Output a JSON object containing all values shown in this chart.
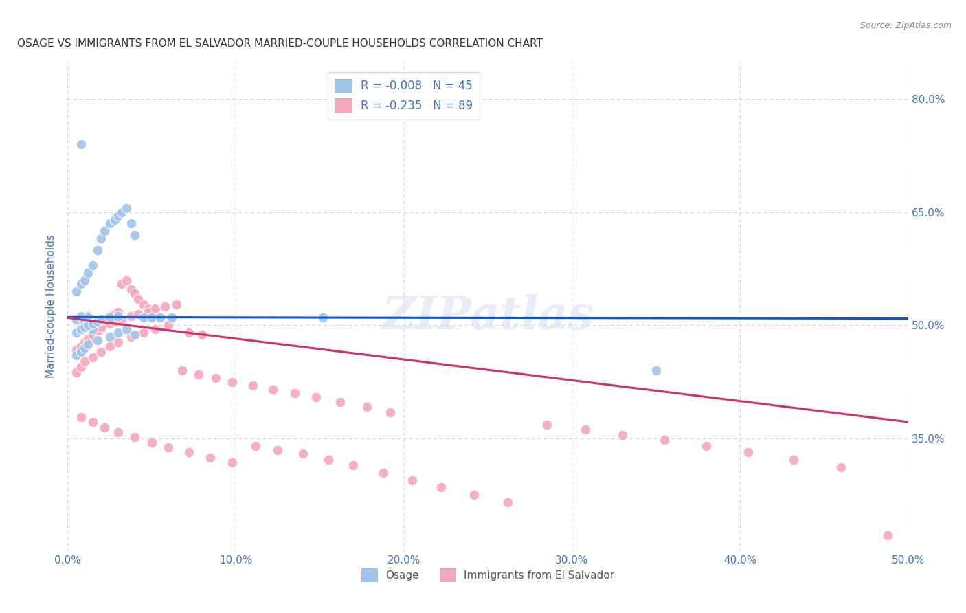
{
  "title": "OSAGE VS IMMIGRANTS FROM EL SALVADOR MARRIED-COUPLE HOUSEHOLDS CORRELATION CHART",
  "source": "Source: ZipAtlas.com",
  "ylabel": "Married-couple Households",
  "xlim": [
    0.0,
    0.5
  ],
  "ylim": [
    0.2,
    0.85
  ],
  "xtick_labels": [
    "0.0%",
    "10.0%",
    "20.0%",
    "30.0%",
    "40.0%",
    "50.0%"
  ],
  "xtick_vals": [
    0.0,
    0.1,
    0.2,
    0.3,
    0.4,
    0.5
  ],
  "ytick_labels": [
    "35.0%",
    "50.0%",
    "65.0%",
    "80.0%"
  ],
  "ytick_vals": [
    0.35,
    0.5,
    0.65,
    0.8
  ],
  "blue_R": "-0.008",
  "blue_N": "45",
  "pink_R": "-0.235",
  "pink_N": "89",
  "blue_color": "#9fc5e8",
  "pink_color": "#f4a7b9",
  "blue_line_color": "#1155cc",
  "pink_line_color": "#cc3366",
  "watermark": "ZIPatlas",
  "blue_points_x": [
    0.005,
    0.008,
    0.01,
    0.012,
    0.015,
    0.005,
    0.008,
    0.01,
    0.012,
    0.015,
    0.018,
    0.02,
    0.022,
    0.025,
    0.028,
    0.03,
    0.032,
    0.035,
    0.038,
    0.04,
    0.005,
    0.008,
    0.01,
    0.012,
    0.015,
    0.018,
    0.02,
    0.025,
    0.03,
    0.005,
    0.008,
    0.01,
    0.012,
    0.018,
    0.025,
    0.03,
    0.035,
    0.04,
    0.045,
    0.05,
    0.055,
    0.062,
    0.152,
    0.35,
    0.008
  ],
  "blue_points_y": [
    0.508,
    0.512,
    0.505,
    0.51,
    0.495,
    0.545,
    0.555,
    0.56,
    0.57,
    0.58,
    0.6,
    0.615,
    0.625,
    0.635,
    0.64,
    0.645,
    0.65,
    0.655,
    0.635,
    0.62,
    0.49,
    0.495,
    0.498,
    0.5,
    0.502,
    0.505,
    0.508,
    0.51,
    0.512,
    0.46,
    0.465,
    0.47,
    0.475,
    0.48,
    0.485,
    0.49,
    0.495,
    0.488,
    0.51,
    0.51,
    0.51,
    0.51,
    0.51,
    0.44,
    0.74
  ],
  "pink_points_x": [
    0.005,
    0.008,
    0.01,
    0.012,
    0.015,
    0.018,
    0.02,
    0.022,
    0.025,
    0.028,
    0.03,
    0.032,
    0.035,
    0.038,
    0.04,
    0.042,
    0.045,
    0.048,
    0.05,
    0.052,
    0.005,
    0.008,
    0.01,
    0.012,
    0.015,
    0.018,
    0.02,
    0.025,
    0.028,
    0.032,
    0.038,
    0.042,
    0.048,
    0.052,
    0.058,
    0.065,
    0.072,
    0.08,
    0.005,
    0.008,
    0.01,
    0.015,
    0.02,
    0.025,
    0.03,
    0.038,
    0.045,
    0.052,
    0.06,
    0.068,
    0.078,
    0.088,
    0.098,
    0.11,
    0.122,
    0.135,
    0.148,
    0.162,
    0.178,
    0.192,
    0.008,
    0.015,
    0.022,
    0.03,
    0.04,
    0.05,
    0.06,
    0.072,
    0.085,
    0.098,
    0.112,
    0.125,
    0.14,
    0.155,
    0.17,
    0.188,
    0.205,
    0.222,
    0.242,
    0.262,
    0.285,
    0.308,
    0.33,
    0.355,
    0.38,
    0.405,
    0.432,
    0.46,
    0.488
  ],
  "pink_points_y": [
    0.508,
    0.505,
    0.51,
    0.512,
    0.498,
    0.502,
    0.495,
    0.508,
    0.512,
    0.515,
    0.518,
    0.555,
    0.56,
    0.548,
    0.542,
    0.535,
    0.528,
    0.522,
    0.518,
    0.512,
    0.468,
    0.472,
    0.478,
    0.482,
    0.488,
    0.492,
    0.498,
    0.502,
    0.505,
    0.508,
    0.512,
    0.515,
    0.518,
    0.522,
    0.525,
    0.528,
    0.49,
    0.488,
    0.438,
    0.445,
    0.452,
    0.458,
    0.465,
    0.472,
    0.478,
    0.485,
    0.49,
    0.495,
    0.5,
    0.44,
    0.435,
    0.43,
    0.425,
    0.42,
    0.415,
    0.41,
    0.405,
    0.398,
    0.392,
    0.385,
    0.378,
    0.372,
    0.365,
    0.358,
    0.352,
    0.345,
    0.338,
    0.332,
    0.325,
    0.318,
    0.34,
    0.335,
    0.33,
    0.322,
    0.315,
    0.305,
    0.295,
    0.285,
    0.275,
    0.265,
    0.368,
    0.362,
    0.355,
    0.348,
    0.34,
    0.332,
    0.322,
    0.312,
    0.222
  ],
  "blue_trend_x": [
    0.0,
    0.5
  ],
  "blue_trend_y": [
    0.511,
    0.509
  ],
  "pink_trend_x": [
    0.0,
    0.5
  ],
  "pink_trend_y": [
    0.51,
    0.372
  ],
  "background_color": "#ffffff",
  "grid_color": "#cccccc",
  "title_color": "#333333",
  "axis_label_color": "#4472c4",
  "tick_label_color": "#4472c4",
  "legend_label_color": "#4472c4"
}
